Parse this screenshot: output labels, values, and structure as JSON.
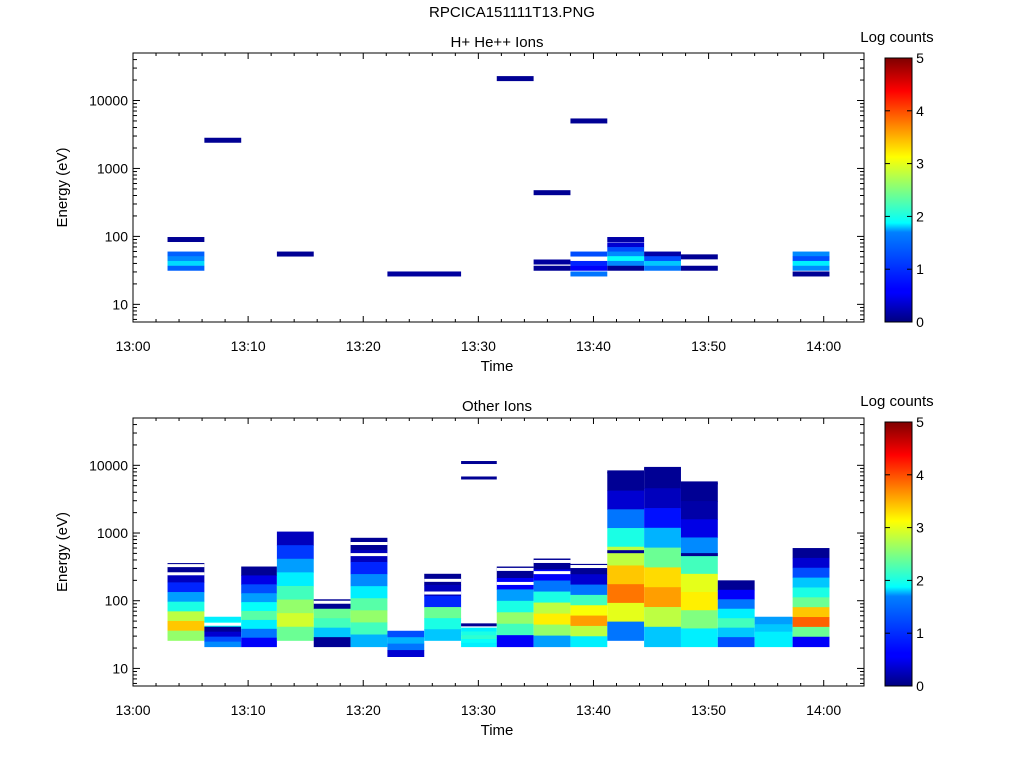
{
  "page_title": "RPCICA151111T13.PNG",
  "chart_data": [
    {
      "type": "heatmap",
      "title": "H+ He++ Ions",
      "xlabel": "Time",
      "ylabel": "Energy (eV)",
      "y_scale": "log",
      "ylim": [
        5.5,
        50000
      ],
      "x_ticks": [
        "13:00",
        "13:10",
        "13:20",
        "13:30",
        "13:40",
        "13:50",
        "14:00"
      ],
      "y_ticks": [
        "10",
        "100",
        "1000",
        "10000"
      ],
      "colorbar": {
        "label": "Log counts",
        "range": [
          0,
          5
        ],
        "ticks": [
          "0",
          "1",
          "2",
          "3",
          "4",
          "5"
        ],
        "colormap": "jet"
      },
      "cells": [
        {
          "t0": 3.0,
          "t1": 6.2,
          "e": 90,
          "v": 0.1
        },
        {
          "t0": 3.0,
          "t1": 6.2,
          "e": 55,
          "v": 1.1
        },
        {
          "t0": 3.0,
          "t1": 6.2,
          "e": 47,
          "v": 1.3
        },
        {
          "t0": 3.0,
          "t1": 6.2,
          "e": 40,
          "v": 1.7
        },
        {
          "t0": 3.0,
          "t1": 6.2,
          "e": 34,
          "v": 1.1
        },
        {
          "t0": 6.2,
          "t1": 9.4,
          "e": 2600,
          "v": 0.1
        },
        {
          "t0": 12.5,
          "t1": 15.7,
          "e": 55,
          "v": 0.1
        },
        {
          "t0": 22.1,
          "t1": 28.5,
          "e": 28,
          "v": 0.15
        },
        {
          "t0": 31.6,
          "t1": 34.8,
          "e": 21000,
          "v": 0.1
        },
        {
          "t0": 34.8,
          "t1": 38.0,
          "e": 440,
          "v": 0.1
        },
        {
          "t0": 34.8,
          "t1": 38.0,
          "e": 42,
          "v": 0.15
        },
        {
          "t0": 34.8,
          "t1": 38.0,
          "e": 34,
          "v": 0.1
        },
        {
          "t0": 38.0,
          "t1": 41.2,
          "e": 5000,
          "v": 0.1
        },
        {
          "t0": 38.0,
          "t1": 41.2,
          "e": 55,
          "v": 1.0
        },
        {
          "t0": 38.0,
          "t1": 41.2,
          "e": 40,
          "v": 0.8
        },
        {
          "t0": 38.0,
          "t1": 41.2,
          "e": 34,
          "v": 0.6
        },
        {
          "t0": 38.0,
          "t1": 41.2,
          "e": 28,
          "v": 1.2
        },
        {
          "t0": 41.2,
          "t1": 44.4,
          "e": 90,
          "v": 0.2
        },
        {
          "t0": 41.2,
          "t1": 44.4,
          "e": 75,
          "v": 0.4
        },
        {
          "t0": 41.2,
          "t1": 44.4,
          "e": 64,
          "v": 1.0
        },
        {
          "t0": 41.2,
          "t1": 44.4,
          "e": 55,
          "v": 1.3
        },
        {
          "t0": 41.2,
          "t1": 44.4,
          "e": 47,
          "v": 1.9
        },
        {
          "t0": 41.2,
          "t1": 44.4,
          "e": 40,
          "v": 1.3
        },
        {
          "t0": 41.2,
          "t1": 44.4,
          "e": 34,
          "v": 0.1
        },
        {
          "t0": 44.4,
          "t1": 47.6,
          "e": 55,
          "v": 0.2
        },
        {
          "t0": 44.4,
          "t1": 47.6,
          "e": 47,
          "v": 1.0
        },
        {
          "t0": 44.4,
          "t1": 47.6,
          "e": 40,
          "v": 1.6
        },
        {
          "t0": 44.4,
          "t1": 47.6,
          "e": 34,
          "v": 1.2
        },
        {
          "t0": 47.6,
          "t1": 50.8,
          "e": 50,
          "v": 0.1
        },
        {
          "t0": 47.6,
          "t1": 50.8,
          "e": 34,
          "v": 0.1
        },
        {
          "t0": 57.3,
          "t1": 60.5,
          "e": 55,
          "v": 1.3
        },
        {
          "t0": 57.3,
          "t1": 60.5,
          "e": 47,
          "v": 1.0
        },
        {
          "t0": 57.3,
          "t1": 60.5,
          "e": 40,
          "v": 1.8
        },
        {
          "t0": 57.3,
          "t1": 60.5,
          "e": 34,
          "v": 1.3
        },
        {
          "t0": 57.3,
          "t1": 60.5,
          "e": 28,
          "v": 0.1
        }
      ]
    },
    {
      "type": "heatmap",
      "title": "Other Ions",
      "xlabel": "Time",
      "ylabel": "Energy (eV)",
      "y_scale": "log",
      "ylim": [
        5.5,
        50000
      ],
      "x_ticks": [
        "13:00",
        "13:10",
        "13:20",
        "13:30",
        "13:40",
        "13:50",
        "14:00"
      ],
      "y_ticks": [
        "10",
        "100",
        "1000",
        "10000"
      ],
      "colorbar": {
        "label": "Log counts",
        "range": [
          0,
          5
        ],
        "ticks": [
          "0",
          "1",
          "2",
          "3",
          "4",
          "5"
        ],
        "colormap": "jet"
      },
      "columns": [
        {
          "t0": 3.0,
          "t1": 6.2,
          "e_top": 360,
          "e_bottom": 26,
          "profile": [
            0.1,
            0.3,
            0.8,
            1.4,
            2.0,
            2.8,
            3.4,
            2.6
          ],
          "gaps": [
            330,
            250
          ]
        },
        {
          "t0": 6.2,
          "t1": 9.4,
          "e_top": 58,
          "e_bottom": 21,
          "profile": [
            1.8,
            1.9,
            0.1,
            0.4,
            1.0,
            1.3
          ],
          "gaps": [
            45
          ]
        },
        {
          "t0": 9.4,
          "t1": 12.5,
          "e_top": 320,
          "e_bottom": 21,
          "profile": [
            0.1,
            0.5,
            1.0,
            1.4,
            1.9,
            2.3,
            1.8,
            1.2,
            0.6
          ]
        },
        {
          "t0": 12.5,
          "t1": 15.7,
          "e_top": 1050,
          "e_bottom": 26,
          "profile": [
            0.3,
            0.9,
            1.4,
            1.8,
            2.2,
            2.6,
            2.9,
            2.4
          ]
        },
        {
          "t0": 15.7,
          "t1": 18.9,
          "e_top": 105,
          "e_bottom": 21,
          "profile": [
            0.1,
            2.4,
            2.2,
            1.6,
            0.1
          ],
          "gaps": [
            95
          ]
        },
        {
          "t0": 18.9,
          "t1": 22.1,
          "e_top": 850,
          "e_bottom": 21,
          "profile": [
            0.1,
            0.3,
            0.8,
            1.3,
            1.8,
            2.3,
            2.6,
            2.2,
            1.5
          ],
          "gaps": [
            700,
            480
          ]
        },
        {
          "t0": 22.1,
          "t1": 25.3,
          "e_top": 36,
          "e_bottom": 15,
          "profile": [
            1.0,
            1.5,
            1.2,
            0.4
          ]
        },
        {
          "t0": 25.3,
          "t1": 28.5,
          "e_top": 250,
          "e_bottom": 26,
          "profile": [
            0.1,
            0.3,
            0.8,
            2.4,
            2.0,
            1.6
          ],
          "gaps": [
            200,
            130
          ]
        },
        {
          "t0": 28.5,
          "t1": 31.6,
          "e_top": 11000,
          "e_bottom": 21,
          "profile": [
            1.8,
            2.0,
            2.1,
            1.9,
            1.8
          ],
          "only_segments": [
            [
              11000,
              0.1
            ],
            [
              6500,
              0.1
            ],
            [
              44,
              0.1
            ]
          ]
        },
        {
          "t0": 31.6,
          "t1": 34.8,
          "e_top": 320,
          "e_bottom": 21,
          "profile": [
            0.1,
            0.6,
            1.4,
            2.0,
            2.6,
            2.2,
            0.6
          ],
          "gaps": [
            290,
            180
          ]
        },
        {
          "t0": 34.8,
          "t1": 38.0,
          "e_top": 420,
          "e_bottom": 21,
          "profile": [
            0.1,
            0.6,
            1.2,
            2.0,
            2.8,
            3.2,
            2.6,
            1.4
          ],
          "gaps": [
            380,
            260
          ]
        },
        {
          "t0": 38.0,
          "t1": 41.2,
          "e_top": 350,
          "e_bottom": 21,
          "profile": [
            0.1,
            0.4,
            1.2,
            2.2,
            3.1,
            3.6,
            2.8,
            1.8
          ],
          "gaps": [
            320
          ]
        },
        {
          "t0": 41.2,
          "t1": 44.4,
          "e_top": 8000,
          "e_bottom": 26,
          "profile": [
            0.1,
            0.4,
            1.2,
            2.0,
            2.8,
            3.4,
            3.8,
            3.0,
            1.2
          ],
          "extra": [
            [
              8000,
              0.1
            ],
            [
              530,
              0.1
            ]
          ]
        },
        {
          "t0": 44.4,
          "t1": 47.6,
          "e_top": 9000,
          "e_bottom": 21,
          "profile": [
            0.1,
            0.3,
            0.7,
            1.5,
            2.4,
            3.3,
            3.6,
            2.8,
            1.6
          ],
          "extra": [
            [
              9000,
              0.1
            ]
          ]
        },
        {
          "t0": 47.6,
          "t1": 50.8,
          "e_top": 5500,
          "e_bottom": 21,
          "profile": [
            0.1,
            0.2,
            0.5,
            1.3,
            2.2,
            3.0,
            3.2,
            2.5,
            1.8
          ],
          "extra": [
            [
              5500,
              0.1
            ],
            [
              480,
              0.1
            ]
          ]
        },
        {
          "t0": 50.8,
          "t1": 54.0,
          "e_top": 200,
          "e_bottom": 21,
          "profile": [
            0.1,
            0.6,
            1.2,
            1.8,
            2.2,
            1.6,
            1.0
          ]
        },
        {
          "t0": 54.0,
          "t1": 57.3,
          "e_top": 58,
          "e_bottom": 21,
          "profile": [
            1.4,
            1.6,
            1.8,
            1.8
          ]
        },
        {
          "t0": 57.3,
          "t1": 60.5,
          "e_top": 600,
          "e_bottom": 21,
          "profile": [
            0.1,
            0.4,
            1.0,
            1.6,
            2.0,
            2.4,
            3.4,
            3.9,
            2.4,
            0.6
          ]
        }
      ]
    }
  ]
}
